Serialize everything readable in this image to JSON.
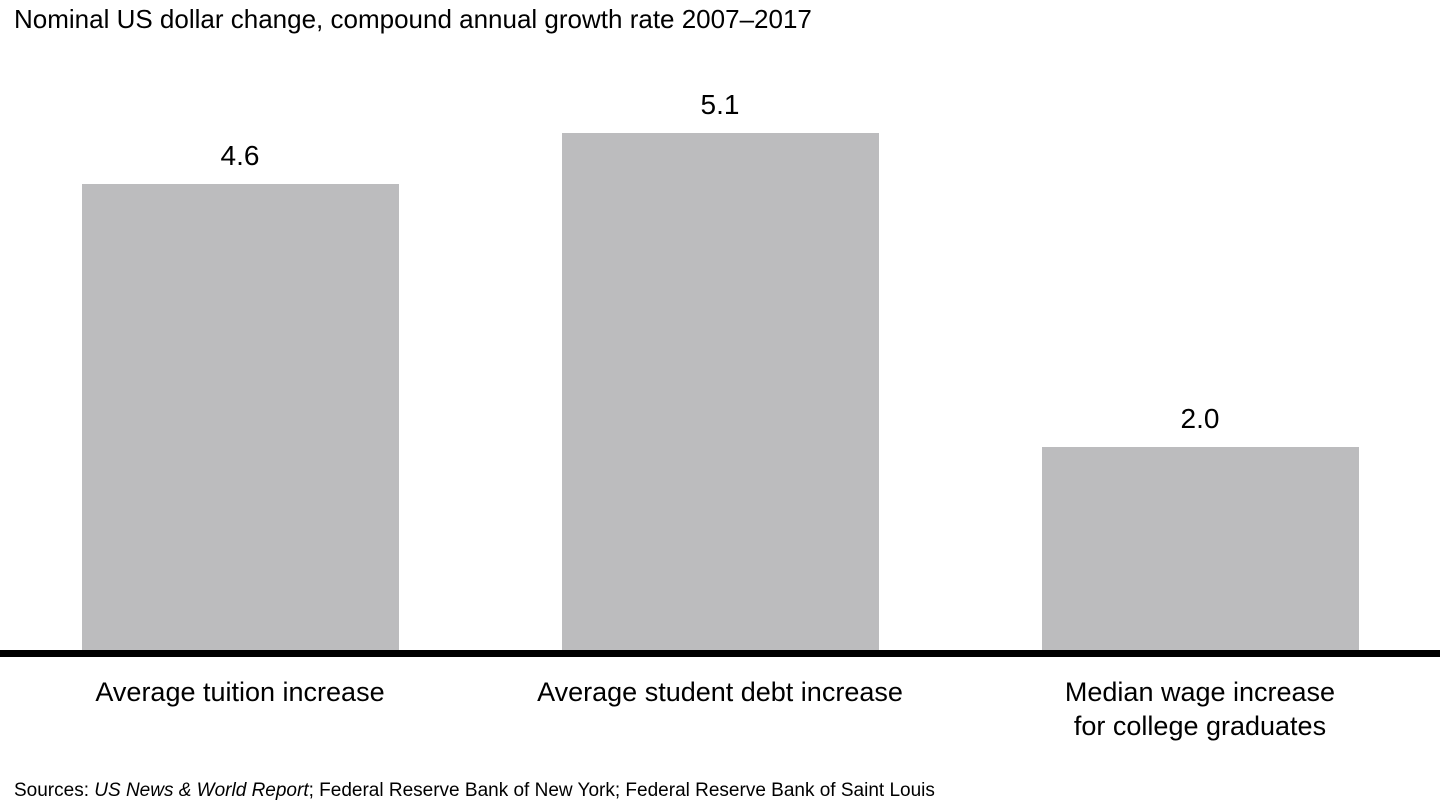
{
  "title": "Nominal US dollar change, compound annual growth rate 2007–2017",
  "chart_data": {
    "type": "bar",
    "title": "Nominal US dollar change, compound annual growth rate 2007–2017",
    "categories": [
      "Average tuition increase",
      "Average student debt increase",
      "Median wage increase for college graduates"
    ],
    "values": [
      4.6,
      5.1,
      2.0
    ],
    "value_labels": [
      "4.6",
      "5.1",
      "2.0"
    ],
    "category_lines": [
      [
        "Average tuition increase",
        ""
      ],
      [
        "Average student debt increase",
        ""
      ],
      [
        "Median wage increase",
        "for college graduates"
      ]
    ],
    "bar_color": "#bcbcbe",
    "baseline_color": "#000000",
    "xlabel": "",
    "ylabel": "",
    "ylim": [
      0,
      5.5
    ],
    "grid": false,
    "legend": false
  },
  "sources": {
    "prefix": "Sources: ",
    "italic": "US News & World Report",
    "rest": "; Federal Reserve Bank of New York; Federal Reserve Bank of Saint Louis"
  }
}
